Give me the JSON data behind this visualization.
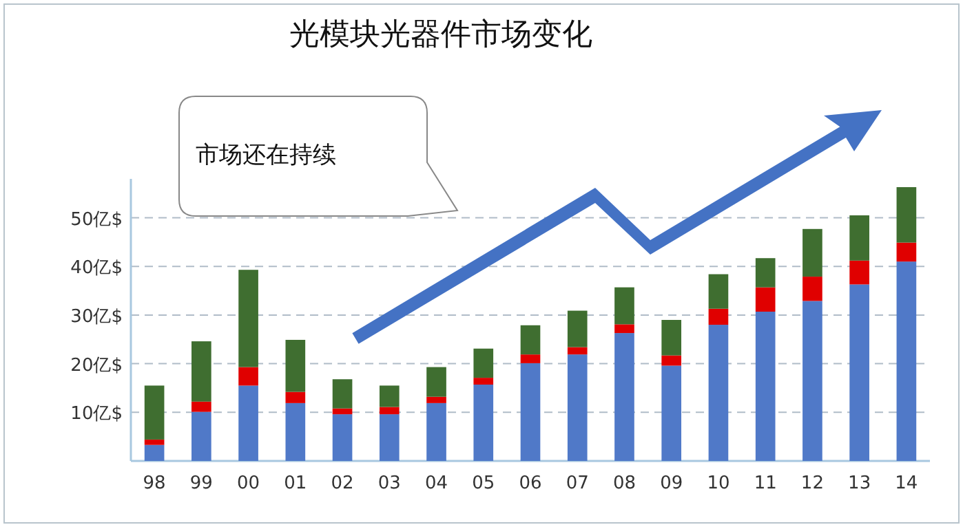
{
  "chart_data": {
    "type": "bar",
    "title": "光模块光器件市场变化",
    "stacked": true,
    "categories": [
      "98",
      "99",
      "00",
      "01",
      "02",
      "03",
      "04",
      "05",
      "06",
      "07",
      "08",
      "09",
      "10",
      "11",
      "12",
      "13",
      "14"
    ],
    "series": [
      {
        "color": "#5079c8",
        "values": [
          3.3,
          10.1,
          15.5,
          11.9,
          9.6,
          9.6,
          11.9,
          15.7,
          20.1,
          21.9,
          26.3,
          19.6,
          28.0,
          30.7,
          32.9,
          36.3,
          41.0
        ]
      },
      {
        "color": "#e00000",
        "values": [
          1.1,
          2.1,
          3.8,
          2.3,
          1.2,
          1.5,
          1.3,
          1.4,
          1.8,
          1.5,
          1.8,
          2.1,
          3.3,
          5.0,
          5.0,
          4.9,
          3.9
        ]
      },
      {
        "color": "#3f6e30",
        "values": [
          11.1,
          12.4,
          20.0,
          10.7,
          6.0,
          4.4,
          6.1,
          6.0,
          6.0,
          7.5,
          7.6,
          7.3,
          7.1,
          6.0,
          9.8,
          9.3,
          11.4
        ]
      }
    ],
    "ylim": [
      0,
      58
    ],
    "yticks": [
      {
        "value": 10,
        "label": "10亿$"
      },
      {
        "value": 20,
        "label": "20亿$"
      },
      {
        "value": 30,
        "label": "30亿$"
      },
      {
        "value": 40,
        "label": "40亿$"
      },
      {
        "value": 50,
        "label": "50亿$"
      }
    ],
    "grid": "y",
    "annotations": [
      "市场还在持续"
    ]
  }
}
